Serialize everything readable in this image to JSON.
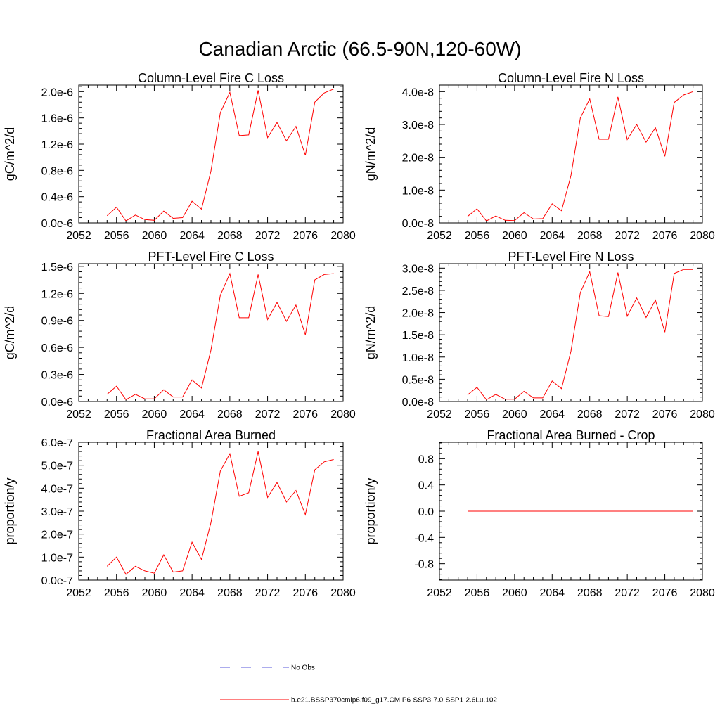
{
  "figure_title": "Canadian Arctic (66.5-90N,120-60W)",
  "legend": [
    {
      "label": "No Obs",
      "color": "#5a5adb",
      "style": "dashed"
    },
    {
      "label": "b.e21.BSSP370cmip6.f09_g17.CMIP6-SSP3-7.0-SSP1-2.6Lu.102",
      "color": "#ff0000",
      "style": "solid"
    }
  ],
  "chart_data": [
    {
      "type": "line",
      "title": "Column-Level Fire C Loss",
      "xlabel": "",
      "ylabel": "gC/m^2/d",
      "xlim": [
        2052,
        2080
      ],
      "ylim": [
        0,
        2.1e-06
      ],
      "xticks": [
        2052,
        2056,
        2060,
        2064,
        2068,
        2072,
        2076,
        2080
      ],
      "xtick_labels": [
        "2052",
        "2056",
        "2060",
        "2064",
        "2068",
        "2072",
        "2076",
        "2080"
      ],
      "yticks": [
        0,
        4e-07,
        8e-07,
        1.2e-06,
        1.6e-06,
        2e-06
      ],
      "ytick_labels": [
        "0.0e-6",
        "0.4e-6",
        "0.8e-6",
        "1.2e-6",
        "1.6e-6",
        "2.0e-6"
      ],
      "x": [
        2055,
        2056,
        2057,
        2058,
        2059,
        2060,
        2061,
        2062,
        2063,
        2064,
        2065,
        2066,
        2067,
        2068,
        2069,
        2070,
        2071,
        2072,
        2073,
        2074,
        2075,
        2076,
        2077,
        2078,
        2079
      ],
      "series": [
        {
          "color": "#ff0000",
          "values": [
            1.1e-07,
            2.4e-07,
            3e-08,
            1.2e-07,
            5e-08,
            4e-08,
            1.8e-07,
            7e-08,
            8e-08,
            3.3e-07,
            2.1e-07,
            7.9e-07,
            1.68e-06,
            1.99e-06,
            1.33e-06,
            1.34e-06,
            2.02e-06,
            1.3e-06,
            1.53e-06,
            1.25e-06,
            1.47e-06,
            1.03e-06,
            1.84e-06,
            1.98e-06,
            2.04e-06
          ]
        }
      ]
    },
    {
      "type": "line",
      "title": "Column-Level Fire N Loss",
      "xlabel": "",
      "ylabel": "gN/m^2/d",
      "xlim": [
        2052,
        2080
      ],
      "ylim": [
        0,
        4.2e-08
      ],
      "xticks": [
        2052,
        2056,
        2060,
        2064,
        2068,
        2072,
        2076,
        2080
      ],
      "xtick_labels": [
        "2052",
        "2056",
        "2060",
        "2064",
        "2068",
        "2072",
        "2076",
        "2080"
      ],
      "yticks": [
        0,
        1e-08,
        2e-08,
        3e-08,
        4e-08
      ],
      "ytick_labels": [
        "0.0e-8",
        "1.0e-8",
        "2.0e-8",
        "3.0e-8",
        "4.0e-8"
      ],
      "x": [
        2055,
        2056,
        2057,
        2058,
        2059,
        2060,
        2061,
        2062,
        2063,
        2064,
        2065,
        2066,
        2067,
        2068,
        2069,
        2070,
        2071,
        2072,
        2073,
        2074,
        2075,
        2076,
        2077,
        2078,
        2079
      ],
      "series": [
        {
          "color": "#ff0000",
          "values": [
            2e-09,
            4.3e-09,
            6e-10,
            2.1e-09,
            8e-10,
            7e-10,
            3.1e-09,
            1.2e-09,
            1.3e-09,
            5.8e-09,
            3.7e-09,
            1.44e-08,
            3.2e-08,
            3.78e-08,
            2.55e-08,
            2.55e-08,
            3.84e-08,
            2.54e-08,
            3e-08,
            2.46e-08,
            2.9e-08,
            2.03e-08,
            3.67e-08,
            3.9e-08,
            4e-08
          ]
        }
      ]
    },
    {
      "type": "line",
      "title": "PFT-Level Fire C Loss",
      "xlabel": "",
      "ylabel": "gC/m^2/d",
      "xlim": [
        2052,
        2080
      ],
      "ylim": [
        0,
        1.53e-06
      ],
      "xticks": [
        2052,
        2056,
        2060,
        2064,
        2068,
        2072,
        2076,
        2080
      ],
      "xtick_labels": [
        "2052",
        "2056",
        "2060",
        "2064",
        "2068",
        "2072",
        "2076",
        "2080"
      ],
      "yticks": [
        0,
        3e-07,
        6e-07,
        9e-07,
        1.2e-06,
        1.5e-06
      ],
      "ytick_labels": [
        "0.0e-6",
        "0.3e-6",
        "0.6e-6",
        "0.9e-6",
        "1.2e-6",
        "1.5e-6"
      ],
      "x": [
        2055,
        2056,
        2057,
        2058,
        2059,
        2060,
        2061,
        2062,
        2063,
        2064,
        2065,
        2066,
        2067,
        2068,
        2069,
        2070,
        2071,
        2072,
        2073,
        2074,
        2075,
        2076,
        2077,
        2078,
        2079
      ],
      "series": [
        {
          "color": "#ff0000",
          "values": [
            8e-08,
            1.7e-07,
            2e-08,
            8e-08,
            3e-08,
            3e-08,
            1.3e-07,
            5e-08,
            5e-08,
            2.4e-07,
            1.5e-07,
            5.7e-07,
            1.18e-06,
            1.42e-06,
            9.3e-07,
            9.3e-07,
            1.41e-06,
            9.1e-07,
            1.1e-06,
            8.9e-07,
            1.07e-06,
            7.4e-07,
            1.35e-06,
            1.41e-06,
            1.42e-06
          ]
        }
      ]
    },
    {
      "type": "line",
      "title": "PFT-Level Fire N Loss",
      "xlabel": "",
      "ylabel": "gN/m^2/d",
      "xlim": [
        2052,
        2080
      ],
      "ylim": [
        0,
        3.1e-08
      ],
      "xticks": [
        2052,
        2056,
        2060,
        2064,
        2068,
        2072,
        2076,
        2080
      ],
      "xtick_labels": [
        "2052",
        "2056",
        "2060",
        "2064",
        "2068",
        "2072",
        "2076",
        "2080"
      ],
      "yticks": [
        0,
        5e-09,
        1e-08,
        1.5e-08,
        2e-08,
        2.5e-08,
        3e-08
      ],
      "ytick_labels": [
        "0.0e-8",
        "0.5e-8",
        "1.0e-8",
        "1.5e-8",
        "2.0e-8",
        "2.5e-8",
        "3.0e-8"
      ],
      "x": [
        2055,
        2056,
        2057,
        2058,
        2059,
        2060,
        2061,
        2062,
        2063,
        2064,
        2065,
        2066,
        2067,
        2068,
        2069,
        2070,
        2071,
        2072,
        2073,
        2074,
        2075,
        2076,
        2077,
        2078,
        2079
      ],
      "series": [
        {
          "color": "#ff0000",
          "values": [
            1.5e-09,
            3.2e-09,
            4e-10,
            1.6e-09,
            5e-10,
            5e-10,
            2.3e-09,
            8e-10,
            8e-10,
            4.6e-09,
            2.9e-09,
            1.13e-08,
            2.45e-08,
            2.92e-08,
            1.93e-08,
            1.91e-08,
            2.9e-08,
            1.92e-08,
            2.33e-08,
            1.89e-08,
            2.28e-08,
            1.56e-08,
            2.88e-08,
            2.97e-08,
            2.97e-08
          ]
        }
      ]
    },
    {
      "type": "line",
      "title": "Fractional Area Burned",
      "xlabel": "",
      "ylabel": "proportion/y",
      "xlim": [
        2052,
        2080
      ],
      "ylim": [
        0,
        6e-07
      ],
      "xticks": [
        2052,
        2056,
        2060,
        2064,
        2068,
        2072,
        2076,
        2080
      ],
      "xtick_labels": [
        "2052",
        "2056",
        "2060",
        "2064",
        "2068",
        "2072",
        "2076",
        "2080"
      ],
      "yticks": [
        0,
        1e-07,
        2e-07,
        3e-07,
        4e-07,
        5e-07,
        6e-07
      ],
      "ytick_labels": [
        "0.0e-7",
        "1.0e-7",
        "2.0e-7",
        "3.0e-7",
        "4.0e-7",
        "5.0e-7",
        "6.0e-7"
      ],
      "x": [
        2055,
        2056,
        2057,
        2058,
        2059,
        2060,
        2061,
        2062,
        2063,
        2064,
        2065,
        2066,
        2067,
        2068,
        2069,
        2070,
        2071,
        2072,
        2073,
        2074,
        2075,
        2076,
        2077,
        2078,
        2079
      ],
      "series": [
        {
          "color": "#ff0000",
          "values": [
            6e-08,
            1e-07,
            2.5e-08,
            6e-08,
            4e-08,
            3e-08,
            1.1e-07,
            3.5e-08,
            4e-08,
            1.65e-07,
            9e-08,
            2.5e-07,
            4.75e-07,
            5.5e-07,
            3.65e-07,
            3.8e-07,
            5.6e-07,
            3.6e-07,
            4.25e-07,
            3.4e-07,
            3.9e-07,
            2.85e-07,
            4.8e-07,
            5.15e-07,
            5.25e-07
          ]
        }
      ]
    },
    {
      "type": "line",
      "title": "Fractional Area Burned - Crop",
      "xlabel": "",
      "ylabel": "proportion/y",
      "xlim": [
        2052,
        2080
      ],
      "ylim": [
        -1.05,
        1.05
      ],
      "xticks": [
        2052,
        2056,
        2060,
        2064,
        2068,
        2072,
        2076,
        2080
      ],
      "xtick_labels": [
        "2052",
        "2056",
        "2060",
        "2064",
        "2068",
        "2072",
        "2076",
        "2080"
      ],
      "yticks": [
        -0.8,
        -0.4,
        0,
        0.4,
        0.8
      ],
      "ytick_labels": [
        "-0.8",
        "-0.4",
        "0.0",
        "0.4",
        "0.8"
      ],
      "x": [
        2055,
        2056,
        2057,
        2058,
        2059,
        2060,
        2061,
        2062,
        2063,
        2064,
        2065,
        2066,
        2067,
        2068,
        2069,
        2070,
        2071,
        2072,
        2073,
        2074,
        2075,
        2076,
        2077,
        2078,
        2079
      ],
      "series": [
        {
          "color": "#ff0000",
          "values": [
            0,
            0,
            0,
            0,
            0,
            0,
            0,
            0,
            0,
            0,
            0,
            0,
            0,
            0,
            0,
            0,
            0,
            0,
            0,
            0,
            0,
            0,
            0,
            0,
            0
          ]
        }
      ]
    }
  ]
}
